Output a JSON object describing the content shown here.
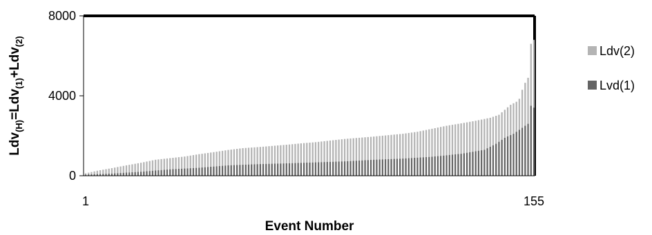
{
  "chart_data": {
    "type": "bar",
    "stacked": true,
    "title": "",
    "xlabel": "Event Number",
    "ylabel": {
      "base": "Ldv",
      "sub_total": "(H)",
      "eq": "=",
      "base1": "Ldv",
      "sub1": "(1)",
      "plus": "+",
      "base2": "Ldv",
      "sub2": "(2)"
    },
    "ylim": [
      0,
      8000
    ],
    "yticks": [
      "0",
      "4000",
      "8000"
    ],
    "xticks": [
      "1",
      "155"
    ],
    "x_count": 155,
    "grid": false,
    "legend_position": "right",
    "series": [
      {
        "name": "Ldv(2)",
        "color": "#b4b4b4",
        "values_note": "total stacked height minus Lvd(1)"
      },
      {
        "name": "Lvd(1)",
        "color": "#646464"
      }
    ],
    "total_knots": [
      [
        1,
        120
      ],
      [
        5,
        250
      ],
      [
        10,
        380
      ],
      [
        15,
        520
      ],
      [
        20,
        650
      ],
      [
        25,
        800
      ],
      [
        30,
        880
      ],
      [
        35,
        960
      ],
      [
        40,
        1080
      ],
      [
        45,
        1180
      ],
      [
        50,
        1290
      ],
      [
        55,
        1380
      ],
      [
        60,
        1430
      ],
      [
        65,
        1490
      ],
      [
        70,
        1550
      ],
      [
        75,
        1620
      ],
      [
        80,
        1680
      ],
      [
        85,
        1760
      ],
      [
        90,
        1840
      ],
      [
        95,
        1900
      ],
      [
        100,
        1960
      ],
      [
        105,
        2030
      ],
      [
        110,
        2100
      ],
      [
        115,
        2200
      ],
      [
        120,
        2350
      ],
      [
        125,
        2500
      ],
      [
        130,
        2620
      ],
      [
        135,
        2750
      ],
      [
        140,
        2900
      ],
      [
        143,
        3050
      ],
      [
        145,
        3300
      ],
      [
        147,
        3550
      ],
      [
        149,
        3700
      ],
      [
        150,
        3850
      ],
      [
        151,
        4300
      ],
      [
        152,
        4650
      ],
      [
        153,
        4900
      ],
      [
        154,
        6600
      ],
      [
        155,
        6800
      ]
    ],
    "lower_knots": [
      [
        1,
        60
      ],
      [
        10,
        110
      ],
      [
        20,
        200
      ],
      [
        30,
        320
      ],
      [
        40,
        400
      ],
      [
        50,
        520
      ],
      [
        60,
        580
      ],
      [
        70,
        620
      ],
      [
        80,
        670
      ],
      [
        90,
        720
      ],
      [
        100,
        800
      ],
      [
        110,
        860
      ],
      [
        120,
        950
      ],
      [
        130,
        1100
      ],
      [
        138,
        1300
      ],
      [
        142,
        1600
      ],
      [
        145,
        1900
      ],
      [
        148,
        2100
      ],
      [
        150,
        2300
      ],
      [
        152,
        2500
      ],
      [
        153,
        2600
      ],
      [
        154,
        3500
      ],
      [
        155,
        3400
      ]
    ],
    "legend": [
      {
        "label": "Ldv(2)",
        "color": "#b4b4b4"
      },
      {
        "label": "Lvd(1)",
        "color": "#646464"
      }
    ]
  }
}
